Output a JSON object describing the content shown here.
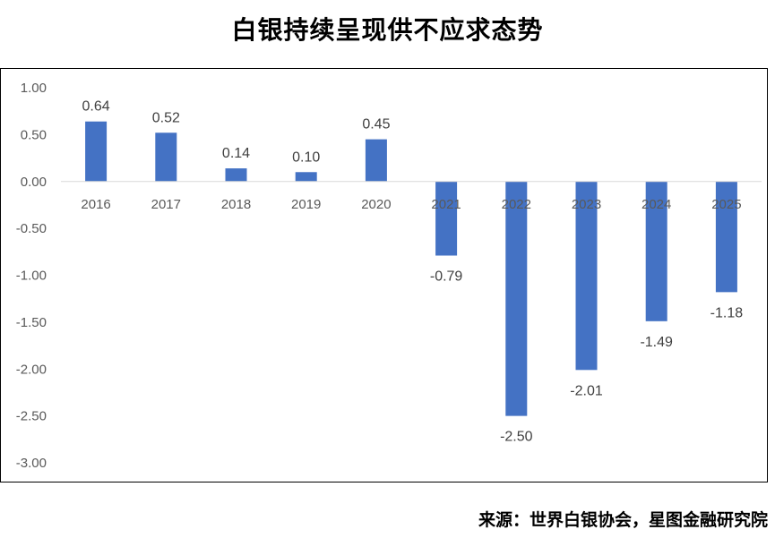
{
  "title": "白银持续呈现供不应求态势",
  "source": "来源：世界白银协会，星图金融研究院",
  "colors": {
    "bar": "#4472C4",
    "axis": "#D9D9D9",
    "text": "#595959"
  },
  "chart_data": {
    "type": "bar",
    "title": "白银持续呈现供不应求态势",
    "categories": [
      "2016",
      "2017",
      "2018",
      "2019",
      "2020",
      "2021",
      "2022",
      "2023",
      "2024",
      "2025"
    ],
    "values": [
      0.64,
      0.52,
      0.14,
      0.1,
      0.45,
      -0.79,
      -2.5,
      -2.01,
      -1.49,
      -1.18
    ],
    "data_labels": [
      "0.64",
      "0.52",
      "0.14",
      "0.10",
      "0.45",
      "-0.79",
      "-2.50",
      "-2.01",
      "-1.49",
      "-1.18"
    ],
    "xlabel": "",
    "ylabel": "",
    "ylim": [
      -3.0,
      1.0
    ],
    "yticks": [
      1.0,
      0.5,
      0.0,
      -0.5,
      -1.0,
      -1.5,
      -2.0,
      -2.5,
      -3.0
    ],
    "ytick_labels": [
      "1.00",
      "0.50",
      "0.00",
      "-0.50",
      "-1.00",
      "-1.50",
      "-2.00",
      "-2.50",
      "-3.00"
    ],
    "grid": false,
    "legend": "none"
  }
}
